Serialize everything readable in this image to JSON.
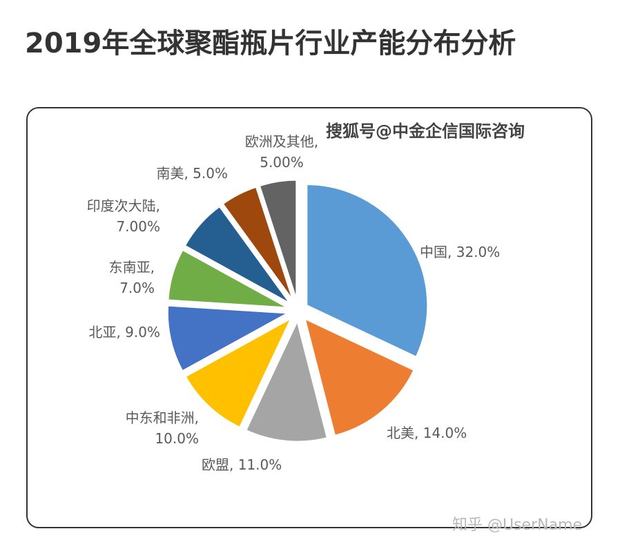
{
  "title": "2019年全球聚酯瓶片行业产能分布分析",
  "watermark_top": "搜狐号@中金企信国际咨询",
  "watermark_bottom": "知乎 @UserName",
  "chart_data": {
    "type": "pie",
    "title": "",
    "slices": [
      {
        "name": "中国",
        "value": 32.0,
        "label_lines": [
          "中国, 32.0%"
        ],
        "color": "#5B9BD5"
      },
      {
        "name": "北美",
        "value": 14.0,
        "label_lines": [
          "北美, 14.0%"
        ],
        "color": "#ED7D31"
      },
      {
        "name": "欧盟",
        "value": 11.0,
        "label_lines": [
          "欧盟, 11.0%"
        ],
        "color": "#A5A5A5"
      },
      {
        "name": "中东和非洲",
        "value": 10.0,
        "label_lines": [
          "中东和非洲,",
          "10.0%"
        ],
        "color": "#FFC000"
      },
      {
        "name": "北亚",
        "value": 9.0,
        "label_lines": [
          "北亚, 9.0%"
        ],
        "color": "#4472C4"
      },
      {
        "name": "东南亚",
        "value": 7.0,
        "label_lines": [
          "东南亚,",
          "7.0%"
        ],
        "color": "#70AD47"
      },
      {
        "name": "印度次大陆",
        "value": 7.0,
        "label_lines": [
          "印度次大陆,",
          "7.00%"
        ],
        "color": "#255E91"
      },
      {
        "name": "南美",
        "value": 5.0,
        "label_lines": [
          "南美, 5.0%"
        ],
        "color": "#9E480E"
      },
      {
        "name": "欧洲及其他",
        "value": 5.0,
        "label_lines": [
          "欧洲及其他,",
          "5.00%"
        ],
        "color": "#636363"
      }
    ],
    "legend": "none"
  }
}
